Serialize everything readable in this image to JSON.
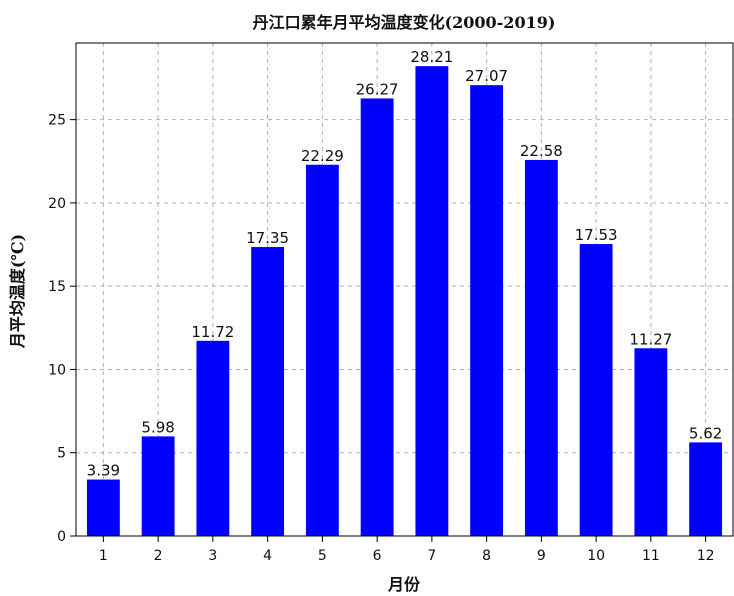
{
  "chart_data": {
    "type": "bar",
    "title": "丹江口累年月平均温度变化(2000-2019)",
    "xlabel": "月份",
    "ylabel": "月平均温度(℃)",
    "categories": [
      "1",
      "2",
      "3",
      "4",
      "5",
      "6",
      "7",
      "8",
      "9",
      "10",
      "11",
      "12"
    ],
    "values": [
      3.39,
      5.98,
      11.72,
      17.35,
      22.29,
      26.27,
      28.21,
      27.07,
      22.58,
      17.53,
      11.27,
      5.62
    ],
    "data_labels": [
      "3.39",
      "5.98",
      "11.72",
      "17.35",
      "22.29",
      "26.27",
      "28.21",
      "27.07",
      "22.58",
      "17.53",
      "11.27",
      "5.62"
    ],
    "ylim": [
      0,
      29.6
    ],
    "yticks": [
      0,
      5,
      10,
      15,
      20,
      25
    ],
    "ytick_labels": [
      "0",
      "5",
      "10",
      "15",
      "20",
      "25"
    ],
    "grid": true,
    "colors": {
      "bar": "#0000ff",
      "grid": "#b0b0b0",
      "axis": "#000000",
      "text": "#111111",
      "background": "#ffffff"
    }
  }
}
